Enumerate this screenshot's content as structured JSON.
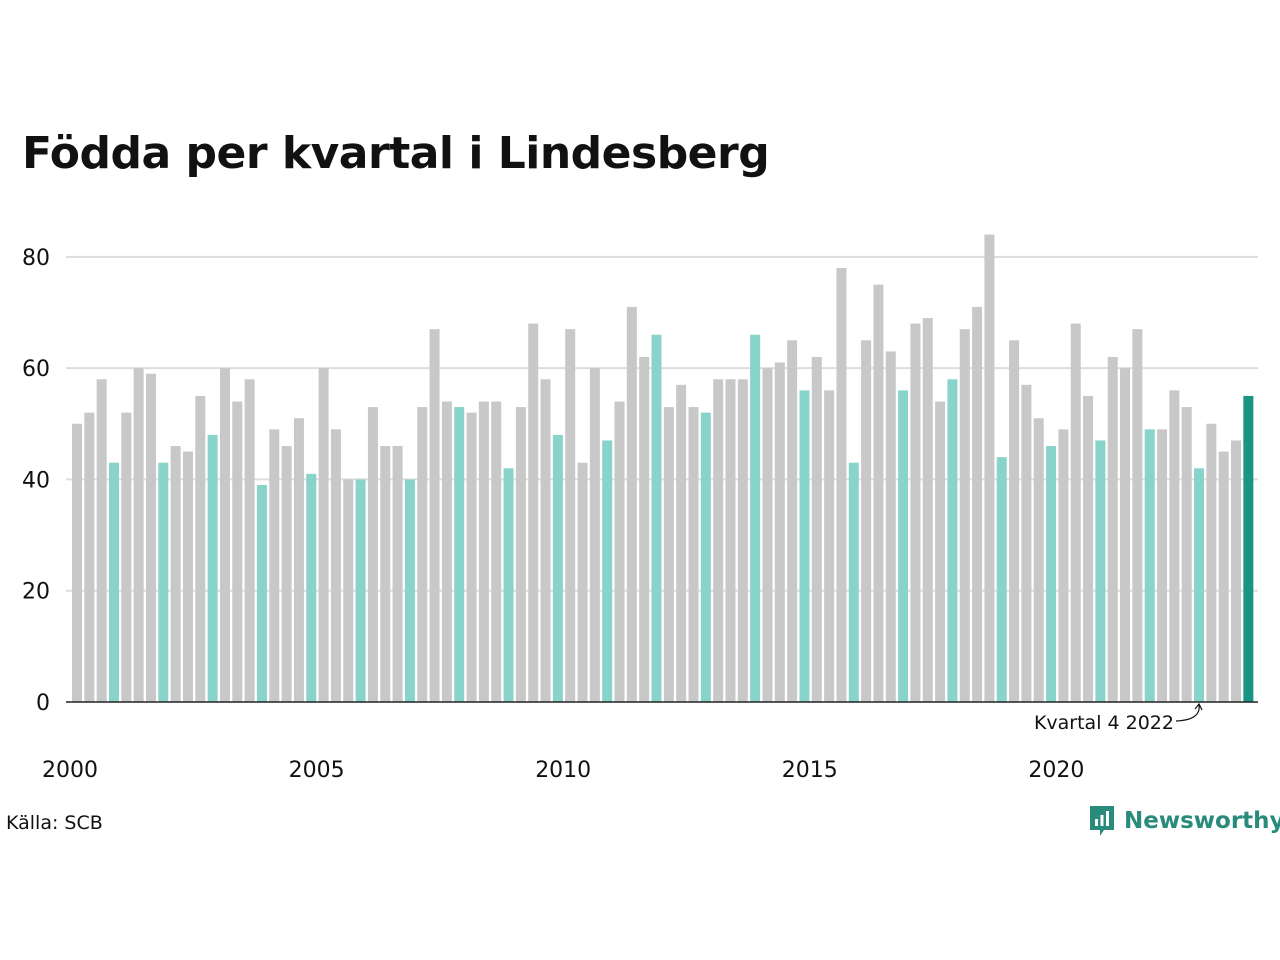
{
  "title": "Födda per kvartal i Lindesberg",
  "source": "Källa: SCB",
  "brand": "Newsworthy",
  "colors": {
    "bar_default": "#c8c8c8",
    "bar_q4": "#88d4cb",
    "bar_highlight": "#1a9483",
    "grid": "#dddddd",
    "axis": "#222222",
    "brand": "#2a8a7b"
  },
  "chart_data": {
    "type": "bar",
    "ylim": [
      0,
      85
    ],
    "yticks": [
      0,
      20,
      40,
      60,
      80
    ],
    "xticks": [
      "2000",
      "2005",
      "2010",
      "2015",
      "2020"
    ],
    "grid": true,
    "annotation": "Kvartal 4 2022",
    "series": [
      {
        "values": [
          50,
          52,
          58,
          43,
          52,
          60,
          59,
          43,
          46,
          45,
          55,
          48,
          60,
          54,
          58,
          39,
          49,
          46,
          51,
          41,
          60,
          49,
          40,
          40,
          53,
          46,
          46,
          40,
          53,
          67,
          54,
          53,
          52,
          54,
          54,
          42,
          53,
          68,
          58,
          48,
          67,
          43,
          60,
          47,
          54,
          71,
          62,
          66,
          53,
          57,
          53,
          52,
          58,
          58,
          58,
          66,
          60,
          61,
          65,
          56,
          62,
          56,
          78,
          43,
          65,
          75,
          63,
          56,
          68,
          69,
          54,
          58,
          67,
          71,
          84,
          44,
          65,
          57,
          51,
          46,
          49,
          68,
          55,
          47,
          62,
          60,
          67,
          49,
          49,
          56,
          53,
          42,
          50,
          45,
          47,
          55
        ]
      }
    ]
  }
}
